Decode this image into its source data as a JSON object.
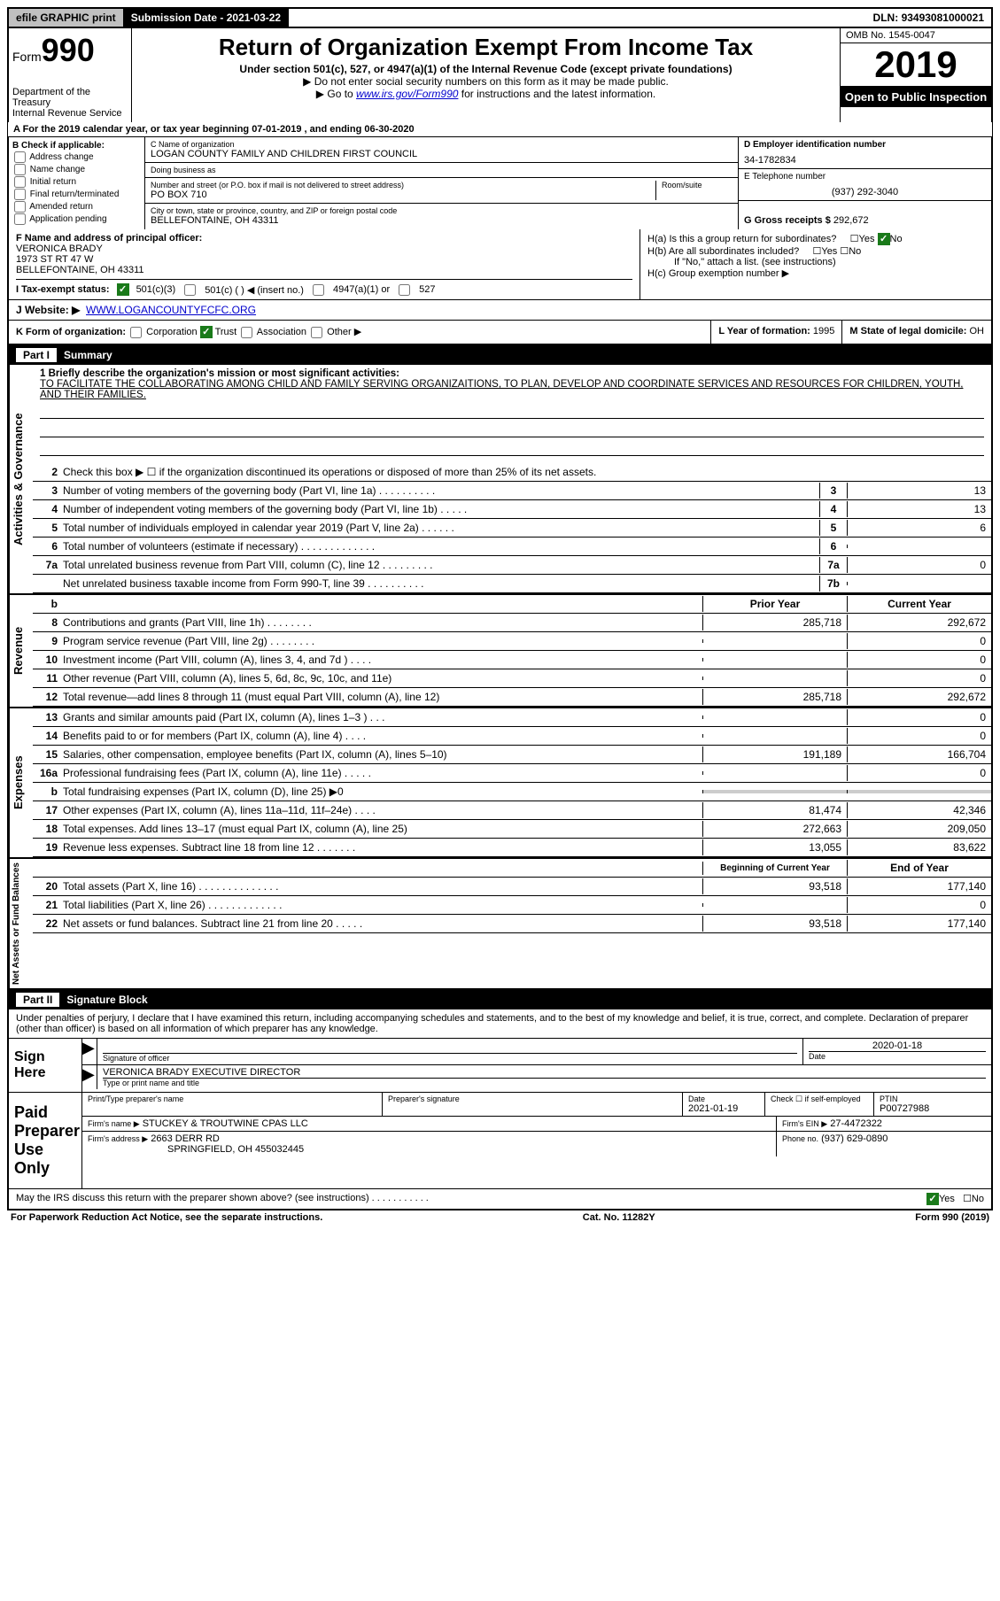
{
  "topbar": {
    "efile": "efile GRAPHIC print",
    "submission_label": "Submission Date",
    "submission_date": "2021-03-22",
    "dln_label": "DLN:",
    "dln": "93493081000021"
  },
  "header": {
    "form_label": "Form",
    "form_number": "990",
    "dept": "Department of the Treasury\nInternal Revenue Service",
    "title": "Return of Organization Exempt From Income Tax",
    "subtitle": "Under section 501(c), 527, or 4947(a)(1) of the Internal Revenue Code (except private foundations)",
    "note1": "▶ Do not enter social security numbers on this form as it may be made public.",
    "note2_pre": "▶ Go to ",
    "note2_link": "www.irs.gov/Form990",
    "note2_post": " for instructions and the latest information.",
    "omb": "OMB No. 1545-0047",
    "year": "2019",
    "inspection": "Open to Public Inspection"
  },
  "line_a": "A For the 2019 calendar year, or tax year beginning 07-01-2019  , and ending 06-30-2020",
  "section_b": {
    "header": "B Check if applicable:",
    "items": [
      "Address change",
      "Name change",
      "Initial return",
      "Final return/terminated",
      "Amended return",
      "Application pending"
    ]
  },
  "section_c": {
    "name_label": "C Name of organization",
    "name": "LOGAN COUNTY FAMILY AND CHILDREN FIRST COUNCIL",
    "dba_label": "Doing business as",
    "dba": "",
    "addr_label": "Number and street (or P.O. box if mail is not delivered to street address)",
    "room_label": "Room/suite",
    "addr": "PO BOX 710",
    "city_label": "City or town, state or province, country, and ZIP or foreign postal code",
    "city": "BELLEFONTAINE, OH  43311"
  },
  "section_d": {
    "ein_label": "D Employer identification number",
    "ein": "34-1782834",
    "phone_label": "E Telephone number",
    "phone": "(937) 292-3040",
    "gross_label": "G Gross receipts $",
    "gross": "292,672"
  },
  "section_f": {
    "label": "F Name and address of principal officer:",
    "name": "VERONICA BRADY",
    "addr1": "1973 ST RT 47 W",
    "addr2": "BELLEFONTAINE, OH  43311"
  },
  "section_h": {
    "a": "H(a)  Is this a group return for subordinates?",
    "a_ans": "No",
    "b": "H(b)  Are all subordinates included?",
    "b_note": "If \"No,\" attach a list. (see instructions)",
    "c": "H(c)  Group exemption number ▶"
  },
  "tax_exempt": {
    "label": "I  Tax-exempt status:",
    "opt1": "501(c)(3)",
    "opt2": "501(c) (  ) ◀ (insert no.)",
    "opt3": "4947(a)(1) or",
    "opt4": "527"
  },
  "website": {
    "label": "J  Website: ▶",
    "url": "WWW.LOGANCOUNTYFCFC.ORG"
  },
  "section_k": {
    "label": "K Form of organization:",
    "opts": [
      "Corporation",
      "Trust",
      "Association",
      "Other ▶"
    ]
  },
  "section_l": {
    "label": "L Year of formation:",
    "val": "1995"
  },
  "section_m": {
    "label": "M State of legal domicile:",
    "val": "OH"
  },
  "part1": {
    "header": "Part I",
    "title": "Summary",
    "mission_label": "1  Briefly describe the organization's mission or most significant activities:",
    "mission": "TO FACILITATE THE COLLABORATING AMONG CHILD AND FAMILY SERVING ORGANIZAITIONS, TO PLAN, DEVELOP AND COORDINATE SERVICES AND RESOURCES FOR CHILDREN, YOUTH, AND THEIR FAMILIES."
  },
  "governance": {
    "side": "Activities & Governance",
    "line2": "Check this box ▶ ☐  if the organization discontinued its operations or disposed of more than 25% of its net assets.",
    "rows": [
      {
        "n": "3",
        "d": "Number of voting members of the governing body (Part VI, line 1a)  .  .  .  .  .  .  .  .  .  .",
        "box": "3",
        "v": "13"
      },
      {
        "n": "4",
        "d": "Number of independent voting members of the governing body (Part VI, line 1b)  .  .  .  .  .",
        "box": "4",
        "v": "13"
      },
      {
        "n": "5",
        "d": "Total number of individuals employed in calendar year 2019 (Part V, line 2a)  .  .  .  .  .  .",
        "box": "5",
        "v": "6"
      },
      {
        "n": "6",
        "d": "Total number of volunteers (estimate if necessary)  .  .  .  .  .  .  .  .  .  .  .  .  .",
        "box": "6",
        "v": ""
      },
      {
        "n": "7a",
        "d": "Total unrelated business revenue from Part VIII, column (C), line 12  .  .  .  .  .  .  .  .  .",
        "box": "7a",
        "v": "0"
      },
      {
        "n": "",
        "d": "Net unrelated business taxable income from Form 990-T, line 39  .  .  .  .  .  .  .  .  .  .",
        "box": "7b",
        "v": ""
      }
    ]
  },
  "revenue": {
    "side": "Revenue",
    "header": {
      "n": "b",
      "prior": "Prior Year",
      "current": "Current Year"
    },
    "rows": [
      {
        "n": "8",
        "d": "Contributions and grants (Part VIII, line 1h)  .  .  .  .  .  .  .  .",
        "p": "285,718",
        "c": "292,672"
      },
      {
        "n": "9",
        "d": "Program service revenue (Part VIII, line 2g)  .  .  .  .  .  .  .  .",
        "p": "",
        "c": "0"
      },
      {
        "n": "10",
        "d": "Investment income (Part VIII, column (A), lines 3, 4, and 7d )  .  .  .  .",
        "p": "",
        "c": "0"
      },
      {
        "n": "11",
        "d": "Other revenue (Part VIII, column (A), lines 5, 6d, 8c, 9c, 10c, and 11e)",
        "p": "",
        "c": "0"
      },
      {
        "n": "12",
        "d": "Total revenue—add lines 8 through 11 (must equal Part VIII, column (A), line 12)",
        "p": "285,718",
        "c": "292,672"
      }
    ]
  },
  "expenses": {
    "side": "Expenses",
    "rows": [
      {
        "n": "13",
        "d": "Grants and similar amounts paid (Part IX, column (A), lines 1–3 )  .  .  .",
        "p": "",
        "c": "0"
      },
      {
        "n": "14",
        "d": "Benefits paid to or for members (Part IX, column (A), line 4)  .  .  .  .",
        "p": "",
        "c": "0"
      },
      {
        "n": "15",
        "d": "Salaries, other compensation, employee benefits (Part IX, column (A), lines 5–10)",
        "p": "191,189",
        "c": "166,704"
      },
      {
        "n": "16a",
        "d": "Professional fundraising fees (Part IX, column (A), line 11e)  .  .  .  .  .",
        "p": "",
        "c": "0"
      },
      {
        "n": "b",
        "d": "Total fundraising expenses (Part IX, column (D), line 25) ▶0",
        "p": "gray",
        "c": "gray"
      },
      {
        "n": "17",
        "d": "Other expenses (Part IX, column (A), lines 11a–11d, 11f–24e)  .  .  .  .",
        "p": "81,474",
        "c": "42,346"
      },
      {
        "n": "18",
        "d": "Total expenses. Add lines 13–17 (must equal Part IX, column (A), line 25)",
        "p": "272,663",
        "c": "209,050"
      },
      {
        "n": "19",
        "d": "Revenue less expenses. Subtract line 18 from line 12  .  .  .  .  .  .  .",
        "p": "13,055",
        "c": "83,622"
      }
    ]
  },
  "netassets": {
    "side": "Net Assets or Fund Balances",
    "header": {
      "prior": "Beginning of Current Year",
      "current": "End of Year"
    },
    "rows": [
      {
        "n": "20",
        "d": "Total assets (Part X, line 16)  .  .  .  .  .  .  .  .  .  .  .  .  .  .",
        "p": "93,518",
        "c": "177,140"
      },
      {
        "n": "21",
        "d": "Total liabilities (Part X, line 26)  .  .  .  .  .  .  .  .  .  .  .  .  .",
        "p": "",
        "c": "0"
      },
      {
        "n": "22",
        "d": "Net assets or fund balances. Subtract line 21 from line 20  .  .  .  .  .",
        "p": "93,518",
        "c": "177,140"
      }
    ]
  },
  "part2": {
    "header": "Part II",
    "title": "Signature Block",
    "text": "Under penalties of perjury, I declare that I have examined this return, including accompanying schedules and statements, and to the best of my knowledge and belief, it is true, correct, and complete. Declaration of preparer (other than officer) is based on all information of which preparer has any knowledge."
  },
  "sign": {
    "label": "Sign Here",
    "sig_label": "Signature of officer",
    "date_label": "Date",
    "date": "2020-01-18",
    "name": "VERONICA BRADY EXECUTIVE DIRECTOR",
    "name_label": "Type or print name and title"
  },
  "preparer": {
    "label": "Paid Preparer Use Only",
    "name_label": "Print/Type preparer's name",
    "sig_label": "Preparer's signature",
    "date_label": "Date",
    "date": "2021-01-19",
    "check_label": "Check ☐ if self-employed",
    "ptin_label": "PTIN",
    "ptin": "P00727988",
    "firm_name_label": "Firm's name   ▶",
    "firm_name": "STUCKEY & TROUTWINE CPAS LLC",
    "firm_ein_label": "Firm's EIN ▶",
    "firm_ein": "27-4472322",
    "firm_addr_label": "Firm's address ▶",
    "firm_addr1": "2663 DERR RD",
    "firm_addr2": "SPRINGFIELD, OH  455032445",
    "firm_phone_label": "Phone no.",
    "firm_phone": "(937) 629-0890"
  },
  "discuss": {
    "text": "May the IRS discuss this return with the preparer shown above? (see instructions)  .  .  .  .  .  .  .  .  .  .  .",
    "ans": "Yes"
  },
  "footer": {
    "left": "For Paperwork Reduction Act Notice, see the separate instructions.",
    "center": "Cat. No. 11282Y",
    "right": "Form 990 (2019)"
  }
}
